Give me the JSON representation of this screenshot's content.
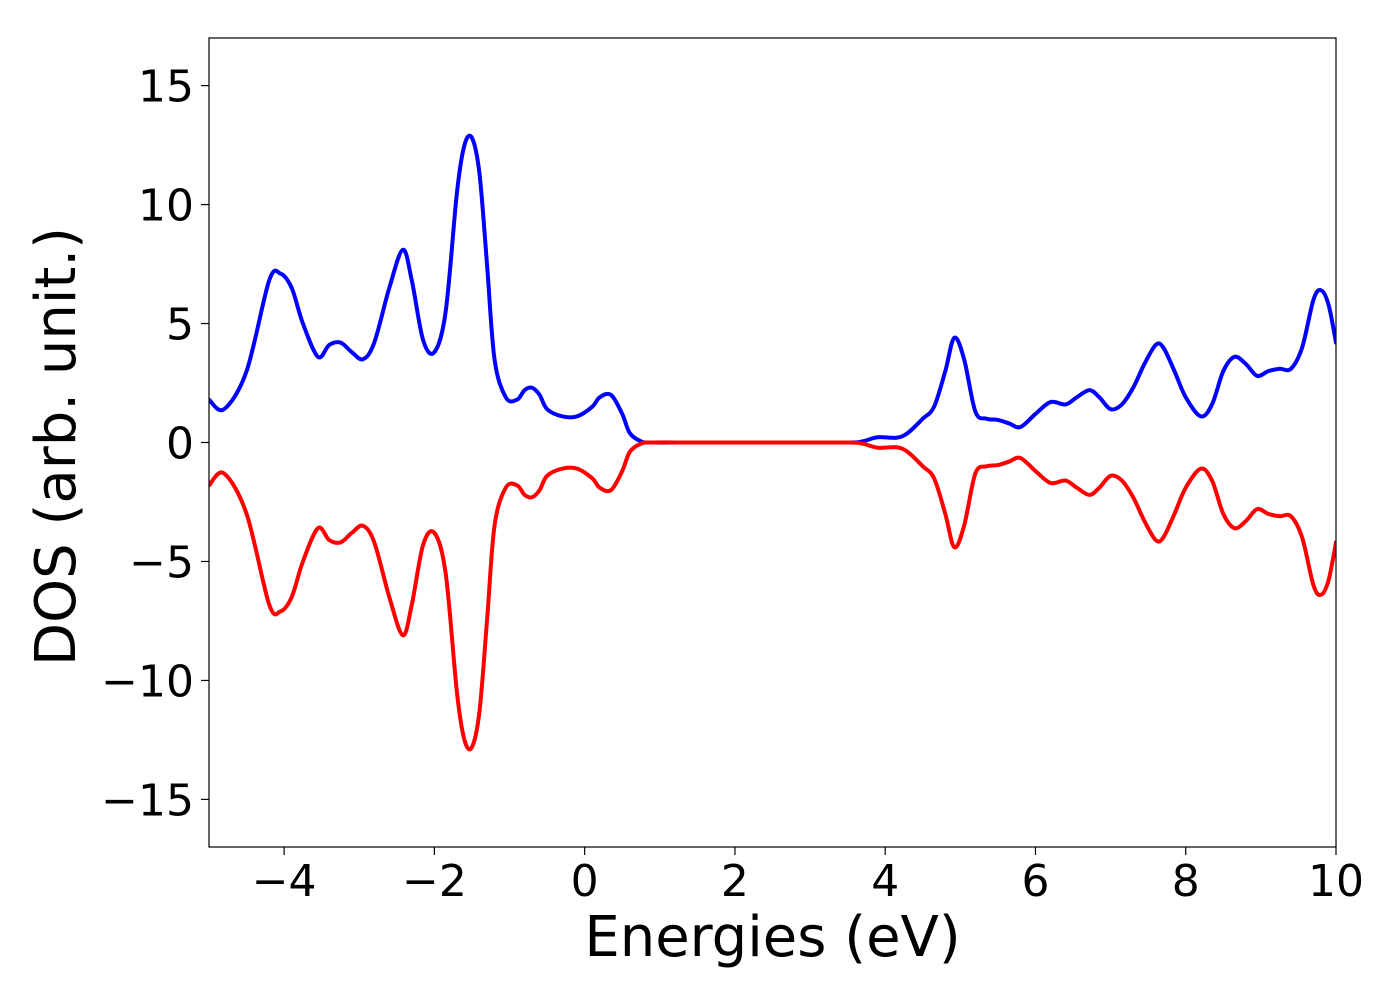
{
  "chart_data": {
    "type": "line",
    "title": "",
    "xlabel": "Energies (eV)",
    "ylabel": "DOS (arb. unit.)",
    "xlim": [
      -5,
      10
    ],
    "ylim": [
      -17,
      17
    ],
    "grid": false,
    "legend": "none",
    "x_ticks": [
      {
        "value": -4,
        "label": "−4"
      },
      {
        "value": -2,
        "label": "−2"
      },
      {
        "value": 0,
        "label": "0"
      },
      {
        "value": 2,
        "label": "2"
      },
      {
        "value": 4,
        "label": "4"
      },
      {
        "value": 6,
        "label": "6"
      },
      {
        "value": 8,
        "label": "8"
      },
      {
        "value": 10,
        "label": "10"
      }
    ],
    "y_ticks": [
      {
        "value": 15,
        "label": "15"
      },
      {
        "value": 10,
        "label": "10"
      },
      {
        "value": 5,
        "label": "5"
      },
      {
        "value": 0,
        "label": "0"
      },
      {
        "value": -5,
        "label": "−5"
      },
      {
        "value": -10,
        "label": "−10"
      },
      {
        "value": -15,
        "label": "−15"
      }
    ],
    "series": [
      {
        "color": "#0000ff",
        "x": [
          -5.0,
          -4.8,
          -4.5,
          -4.2,
          -4.05,
          -3.9,
          -3.75,
          -3.55,
          -3.4,
          -3.25,
          -3.1,
          -2.95,
          -2.8,
          -2.6,
          -2.42,
          -2.3,
          -2.15,
          -2.0,
          -1.85,
          -1.7,
          -1.6,
          -1.5,
          -1.4,
          -1.3,
          -1.2,
          -1.05,
          -0.9,
          -0.8,
          -0.7,
          -0.6,
          -0.5,
          -0.3,
          -0.1,
          0.1,
          0.2,
          0.35,
          0.5,
          0.6,
          0.75,
          0.9,
          1.5,
          2.5,
          3.5,
          3.7,
          3.9,
          4.15,
          4.3,
          4.5,
          4.65,
          4.8,
          4.92,
          5.05,
          5.2,
          5.35,
          5.5,
          5.65,
          5.8,
          6.0,
          6.2,
          6.4,
          6.55,
          6.72,
          6.85,
          7.0,
          7.15,
          7.3,
          7.45,
          7.6,
          7.7,
          7.85,
          8.0,
          8.2,
          8.35,
          8.5,
          8.65,
          8.8,
          8.95,
          9.1,
          9.25,
          9.4,
          9.55,
          9.7,
          9.8,
          9.9,
          10.0
        ],
        "values": [
          1.8,
          1.4,
          3.0,
          6.8,
          7.1,
          6.5,
          5.0,
          3.6,
          4.1,
          4.2,
          3.8,
          3.5,
          4.2,
          6.5,
          8.1,
          6.8,
          4.3,
          3.8,
          5.5,
          10.5,
          12.5,
          12.8,
          11.3,
          7.5,
          3.5,
          1.9,
          1.8,
          2.2,
          2.3,
          2.0,
          1.4,
          1.1,
          1.1,
          1.5,
          1.9,
          2.0,
          1.2,
          0.4,
          0.05,
          0.0,
          0.0,
          0.0,
          0.0,
          0.05,
          0.22,
          0.2,
          0.4,
          1.0,
          1.5,
          3.0,
          4.4,
          3.5,
          1.3,
          1.0,
          0.95,
          0.8,
          0.65,
          1.2,
          1.7,
          1.6,
          1.9,
          2.2,
          1.9,
          1.4,
          1.6,
          2.3,
          3.3,
          4.1,
          4.0,
          3.0,
          1.9,
          1.1,
          1.6,
          3.0,
          3.6,
          3.3,
          2.8,
          3.0,
          3.1,
          3.1,
          4.0,
          6.0,
          6.4,
          5.8,
          4.2
        ]
      },
      {
        "color": "#ff0000",
        "x": [
          -5.0,
          -4.8,
          -4.5,
          -4.2,
          -4.05,
          -3.9,
          -3.75,
          -3.55,
          -3.4,
          -3.25,
          -3.1,
          -2.95,
          -2.8,
          -2.6,
          -2.42,
          -2.3,
          -2.15,
          -2.0,
          -1.85,
          -1.7,
          -1.6,
          -1.5,
          -1.4,
          -1.3,
          -1.2,
          -1.05,
          -0.9,
          -0.8,
          -0.7,
          -0.6,
          -0.5,
          -0.3,
          -0.1,
          0.1,
          0.2,
          0.35,
          0.5,
          0.6,
          0.75,
          0.9,
          1.5,
          2.5,
          3.5,
          3.7,
          3.9,
          4.15,
          4.3,
          4.5,
          4.65,
          4.8,
          4.92,
          5.05,
          5.2,
          5.35,
          5.5,
          5.65,
          5.8,
          6.0,
          6.2,
          6.4,
          6.55,
          6.72,
          6.85,
          7.0,
          7.15,
          7.3,
          7.45,
          7.6,
          7.7,
          7.85,
          8.0,
          8.2,
          8.35,
          8.5,
          8.65,
          8.8,
          8.95,
          9.1,
          9.25,
          9.4,
          9.55,
          9.7,
          9.8,
          9.9,
          10.0
        ],
        "values": [
          -1.8,
          -1.3,
          -3.0,
          -6.8,
          -7.1,
          -6.5,
          -5.0,
          -3.6,
          -4.1,
          -4.2,
          -3.8,
          -3.5,
          -4.2,
          -6.5,
          -8.1,
          -6.8,
          -4.3,
          -3.8,
          -5.5,
          -10.5,
          -12.5,
          -12.8,
          -11.3,
          -7.5,
          -3.5,
          -1.9,
          -1.8,
          -2.2,
          -2.3,
          -2.0,
          -1.4,
          -1.1,
          -1.1,
          -1.5,
          -1.9,
          -2.0,
          -1.2,
          -0.4,
          -0.05,
          0.0,
          0.0,
          0.0,
          0.0,
          -0.05,
          -0.22,
          -0.2,
          -0.4,
          -1.0,
          -1.5,
          -3.0,
          -4.4,
          -3.5,
          -1.3,
          -1.0,
          -0.95,
          -0.8,
          -0.65,
          -1.2,
          -1.7,
          -1.6,
          -1.9,
          -2.2,
          -1.9,
          -1.4,
          -1.6,
          -2.3,
          -3.3,
          -4.1,
          -4.0,
          -3.0,
          -1.9,
          -1.1,
          -1.6,
          -3.0,
          -3.6,
          -3.3,
          -2.8,
          -3.0,
          -3.1,
          -3.1,
          -4.0,
          -6.0,
          -6.4,
          -5.8,
          -4.2
        ]
      }
    ]
  }
}
